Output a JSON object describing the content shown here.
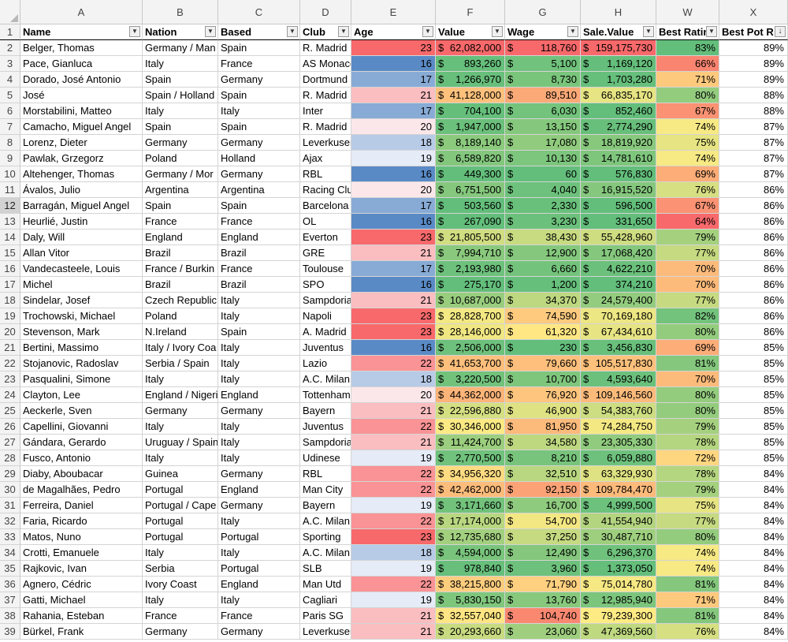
{
  "sheet": {
    "column_letters": [
      "A",
      "B",
      "C",
      "D",
      "E",
      "F",
      "G",
      "H",
      "W",
      "X"
    ],
    "headers": [
      "Name",
      "Nation",
      "Based",
      "Club",
      "Age",
      "Value",
      "Wage",
      "Sale.Value",
      "Best Ratin",
      "Best Pot R"
    ],
    "sorted_column_indicator": "↓",
    "currency_symbol": "$",
    "rows": [
      {
        "n": "2",
        "name": "Belger, Thomas",
        "nation": "Germany / Man",
        "based": "Spain",
        "club": "R. Madrid",
        "age": "23",
        "value": "62,082,000",
        "wage": "118,760",
        "sale": "159,175,730",
        "br": "83%",
        "bp": "89%"
      },
      {
        "n": "3",
        "name": "Pace, Gianluca",
        "nation": "Italy",
        "based": "France",
        "club": "AS Monaco",
        "age": "16",
        "value": "893,260",
        "wage": "5,100",
        "sale": "1,169,120",
        "br": "66%",
        "bp": "89%"
      },
      {
        "n": "4",
        "name": "Dorado, José Antonio",
        "nation": "Spain",
        "based": "Germany",
        "club": "Dortmund",
        "age": "17",
        "value": "1,266,970",
        "wage": "8,730",
        "sale": "1,703,280",
        "br": "71%",
        "bp": "89%"
      },
      {
        "n": "5",
        "name": "José",
        "nation": "Spain / Holland",
        "based": "Spain",
        "club": "R. Madrid",
        "age": "21",
        "value": "41,128,000",
        "wage": "89,510",
        "sale": "66,835,170",
        "br": "80%",
        "bp": "88%"
      },
      {
        "n": "6",
        "name": "Morstabilini, Matteo",
        "nation": "Italy",
        "based": "Italy",
        "club": "Inter",
        "age": "17",
        "value": "704,100",
        "wage": "6,030",
        "sale": "852,460",
        "br": "67%",
        "bp": "88%"
      },
      {
        "n": "7",
        "name": "Camacho, Miguel Angel",
        "nation": "Spain",
        "based": "Spain",
        "club": "R. Madrid",
        "age": "20",
        "value": "1,947,000",
        "wage": "13,150",
        "sale": "2,774,290",
        "br": "74%",
        "bp": "87%"
      },
      {
        "n": "8",
        "name": "Lorenz, Dieter",
        "nation": "Germany",
        "based": "Germany",
        "club": "Leverkusen",
        "age": "18",
        "value": "8,189,140",
        "wage": "17,080",
        "sale": "18,819,920",
        "br": "75%",
        "bp": "87%"
      },
      {
        "n": "9",
        "name": "Pawlak, Grzegorz",
        "nation": "Poland",
        "based": "Holland",
        "club": "Ajax",
        "age": "19",
        "value": "6,589,820",
        "wage": "10,130",
        "sale": "14,781,610",
        "br": "74%",
        "bp": "87%"
      },
      {
        "n": "10",
        "name": "Altehenger, Thomas",
        "nation": "Germany / Mor",
        "based": "Germany",
        "club": "RBL",
        "age": "16",
        "value": "449,300",
        "wage": "60",
        "sale": "576,830",
        "br": "69%",
        "bp": "87%"
      },
      {
        "n": "11",
        "name": "Ávalos, Julio",
        "nation": "Argentina",
        "based": "Argentina",
        "club": "Racing Club",
        "age": "20",
        "value": "6,751,500",
        "wage": "4,040",
        "sale": "16,915,520",
        "br": "76%",
        "bp": "86%"
      },
      {
        "n": "12",
        "name": "Barragán, Miguel Angel",
        "nation": "Spain",
        "based": "Spain",
        "club": "Barcelona",
        "age": "17",
        "value": "503,560",
        "wage": "2,330",
        "sale": "596,500",
        "br": "67%",
        "bp": "86%"
      },
      {
        "n": "13",
        "name": "Heurlié, Justin",
        "nation": "France",
        "based": "France",
        "club": "OL",
        "age": "16",
        "value": "267,090",
        "wage": "3,230",
        "sale": "331,650",
        "br": "64%",
        "bp": "86%"
      },
      {
        "n": "14",
        "name": "Daly, Will",
        "nation": "England",
        "based": "England",
        "club": "Everton",
        "age": "23",
        "value": "21,805,500",
        "wage": "38,430",
        "sale": "55,428,960",
        "br": "79%",
        "bp": "86%"
      },
      {
        "n": "15",
        "name": "Allan Vitor",
        "nation": "Brazil",
        "based": "Brazil",
        "club": "GRE",
        "age": "21",
        "value": "7,994,710",
        "wage": "12,900",
        "sale": "17,068,420",
        "br": "77%",
        "bp": "86%"
      },
      {
        "n": "16",
        "name": "Vandecasteele, Louis",
        "nation": "France / Burkin",
        "based": "France",
        "club": "Toulouse",
        "age": "17",
        "value": "2,193,980",
        "wage": "6,660",
        "sale": "4,622,210",
        "br": "70%",
        "bp": "86%"
      },
      {
        "n": "17",
        "name": "Michel",
        "nation": "Brazil",
        "based": "Brazil",
        "club": "SPO",
        "age": "16",
        "value": "275,170",
        "wage": "1,200",
        "sale": "374,210",
        "br": "70%",
        "bp": "86%"
      },
      {
        "n": "18",
        "name": "Sindelar, Josef",
        "nation": "Czech Republic",
        "based": "Italy",
        "club": "Sampdoria",
        "age": "21",
        "value": "10,687,000",
        "wage": "34,370",
        "sale": "24,579,400",
        "br": "77%",
        "bp": "86%"
      },
      {
        "n": "19",
        "name": "Trochowski, Michael",
        "nation": "Poland",
        "based": "Italy",
        "club": "Napoli",
        "age": "23",
        "value": "28,828,700",
        "wage": "74,590",
        "sale": "70,169,180",
        "br": "82%",
        "bp": "86%"
      },
      {
        "n": "20",
        "name": "Stevenson, Mark",
        "nation": "N.Ireland",
        "based": "Spain",
        "club": "A. Madrid",
        "age": "23",
        "value": "28,146,000",
        "wage": "61,320",
        "sale": "67,434,610",
        "br": "80%",
        "bp": "86%"
      },
      {
        "n": "21",
        "name": "Bertini, Massimo",
        "nation": "Italy / Ivory Coa",
        "based": "Italy",
        "club": "Juventus",
        "age": "16",
        "value": "2,506,000",
        "wage": "230",
        "sale": "3,456,830",
        "br": "69%",
        "bp": "85%"
      },
      {
        "n": "22",
        "name": "Stojanovic, Radoslav",
        "nation": "Serbia / Spain",
        "based": "Italy",
        "club": "Lazio",
        "age": "22",
        "value": "41,653,700",
        "wage": "79,660",
        "sale": "105,517,830",
        "br": "81%",
        "bp": "85%"
      },
      {
        "n": "23",
        "name": "Pasqualini, Simone",
        "nation": "Italy",
        "based": "Italy",
        "club": "A.C. Milan",
        "age": "18",
        "value": "3,220,500",
        "wage": "10,700",
        "sale": "4,593,640",
        "br": "70%",
        "bp": "85%"
      },
      {
        "n": "24",
        "name": "Clayton, Lee",
        "nation": "England / Nigeri",
        "based": "England",
        "club": "Tottenham",
        "age": "20",
        "value": "44,362,000",
        "wage": "76,920",
        "sale": "109,146,560",
        "br": "80%",
        "bp": "85%"
      },
      {
        "n": "25",
        "name": "Aeckerle, Sven",
        "nation": "Germany",
        "based": "Germany",
        "club": "Bayern",
        "age": "21",
        "value": "22,596,880",
        "wage": "46,900",
        "sale": "54,383,760",
        "br": "80%",
        "bp": "85%"
      },
      {
        "n": "26",
        "name": "Capellini, Giovanni",
        "nation": "Italy",
        "based": "Italy",
        "club": "Juventus",
        "age": "22",
        "value": "30,346,000",
        "wage": "81,950",
        "sale": "74,284,750",
        "br": "79%",
        "bp": "85%"
      },
      {
        "n": "27",
        "name": "Gándara, Gerardo",
        "nation": "Uruguay / Spain",
        "based": "Italy",
        "club": "Sampdoria",
        "age": "21",
        "value": "11,424,700",
        "wage": "34,580",
        "sale": "23,305,330",
        "br": "78%",
        "bp": "85%"
      },
      {
        "n": "28",
        "name": "Fusco, Antonio",
        "nation": "Italy",
        "based": "Italy",
        "club": "Udinese",
        "age": "19",
        "value": "2,770,500",
        "wage": "8,210",
        "sale": "6,059,880",
        "br": "72%",
        "bp": "85%"
      },
      {
        "n": "29",
        "name": "Diaby, Aboubacar",
        "nation": "Guinea",
        "based": "Germany",
        "club": "RBL",
        "age": "22",
        "value": "34,956,320",
        "wage": "32,510",
        "sale": "63,329,930",
        "br": "78%",
        "bp": "84%"
      },
      {
        "n": "30",
        "name": "de Magalhães, Pedro",
        "nation": "Portugal",
        "based": "England",
        "club": "Man City",
        "age": "22",
        "value": "42,462,000",
        "wage": "92,150",
        "sale": "109,784,470",
        "br": "79%",
        "bp": "84%"
      },
      {
        "n": "31",
        "name": "Ferreira, Daniel",
        "nation": "Portugal / Cape",
        "based": "Germany",
        "club": "Bayern",
        "age": "19",
        "value": "3,171,660",
        "wage": "16,700",
        "sale": "4,999,500",
        "br": "75%",
        "bp": "84%"
      },
      {
        "n": "32",
        "name": "Faria, Ricardo",
        "nation": "Portugal",
        "based": "Italy",
        "club": "A.C. Milan",
        "age": "22",
        "value": "17,174,000",
        "wage": "54,700",
        "sale": "41,554,940",
        "br": "77%",
        "bp": "84%"
      },
      {
        "n": "33",
        "name": "Matos, Nuno",
        "nation": "Portugal",
        "based": "Portugal",
        "club": "Sporting",
        "age": "23",
        "value": "12,735,680",
        "wage": "37,250",
        "sale": "30,487,710",
        "br": "80%",
        "bp": "84%"
      },
      {
        "n": "34",
        "name": "Crotti, Emanuele",
        "nation": "Italy",
        "based": "Italy",
        "club": "A.C. Milan",
        "age": "18",
        "value": "4,594,000",
        "wage": "12,490",
        "sale": "6,296,370",
        "br": "74%",
        "bp": "84%"
      },
      {
        "n": "35",
        "name": "Rajkovic, Ivan",
        "nation": "Serbia",
        "based": "Portugal",
        "club": "SLB",
        "age": "19",
        "value": "978,840",
        "wage": "3,960",
        "sale": "1,373,050",
        "br": "74%",
        "bp": "84%"
      },
      {
        "n": "36",
        "name": "Agnero, Cédric",
        "nation": "Ivory Coast",
        "based": "England",
        "club": "Man Utd",
        "age": "22",
        "value": "38,215,800",
        "wage": "71,790",
        "sale": "75,014,780",
        "br": "81%",
        "bp": "84%"
      },
      {
        "n": "37",
        "name": "Gatti, Michael",
        "nation": "Italy",
        "based": "Italy",
        "club": "Cagliari",
        "age": "19",
        "value": "5,830,150",
        "wage": "13,760",
        "sale": "12,985,940",
        "br": "71%",
        "bp": "84%"
      },
      {
        "n": "38",
        "name": "Rahania, Esteban",
        "nation": "France",
        "based": "France",
        "club": "Paris SG",
        "age": "21",
        "value": "32,557,040",
        "wage": "104,740",
        "sale": "79,239,300",
        "br": "81%",
        "bp": "84%"
      },
      {
        "n": "39",
        "name": "Bürkel, Frank",
        "nation": "Germany",
        "based": "Germany",
        "club": "Leverkusen",
        "age": "21",
        "value": "20,293,660",
        "wage": "23,060",
        "sale": "47,369,560",
        "br": "76%",
        "bp": "84%"
      }
    ],
    "selected_row": "12",
    "header_row_number": "1",
    "colors": {
      "age_high": "#f8696b",
      "age_mid": "#fcfcff",
      "age_low": "#5a8ac6",
      "scale_red": "#f8696b",
      "scale_yellow": "#ffeb84",
      "scale_green": "#63be7b"
    }
  }
}
